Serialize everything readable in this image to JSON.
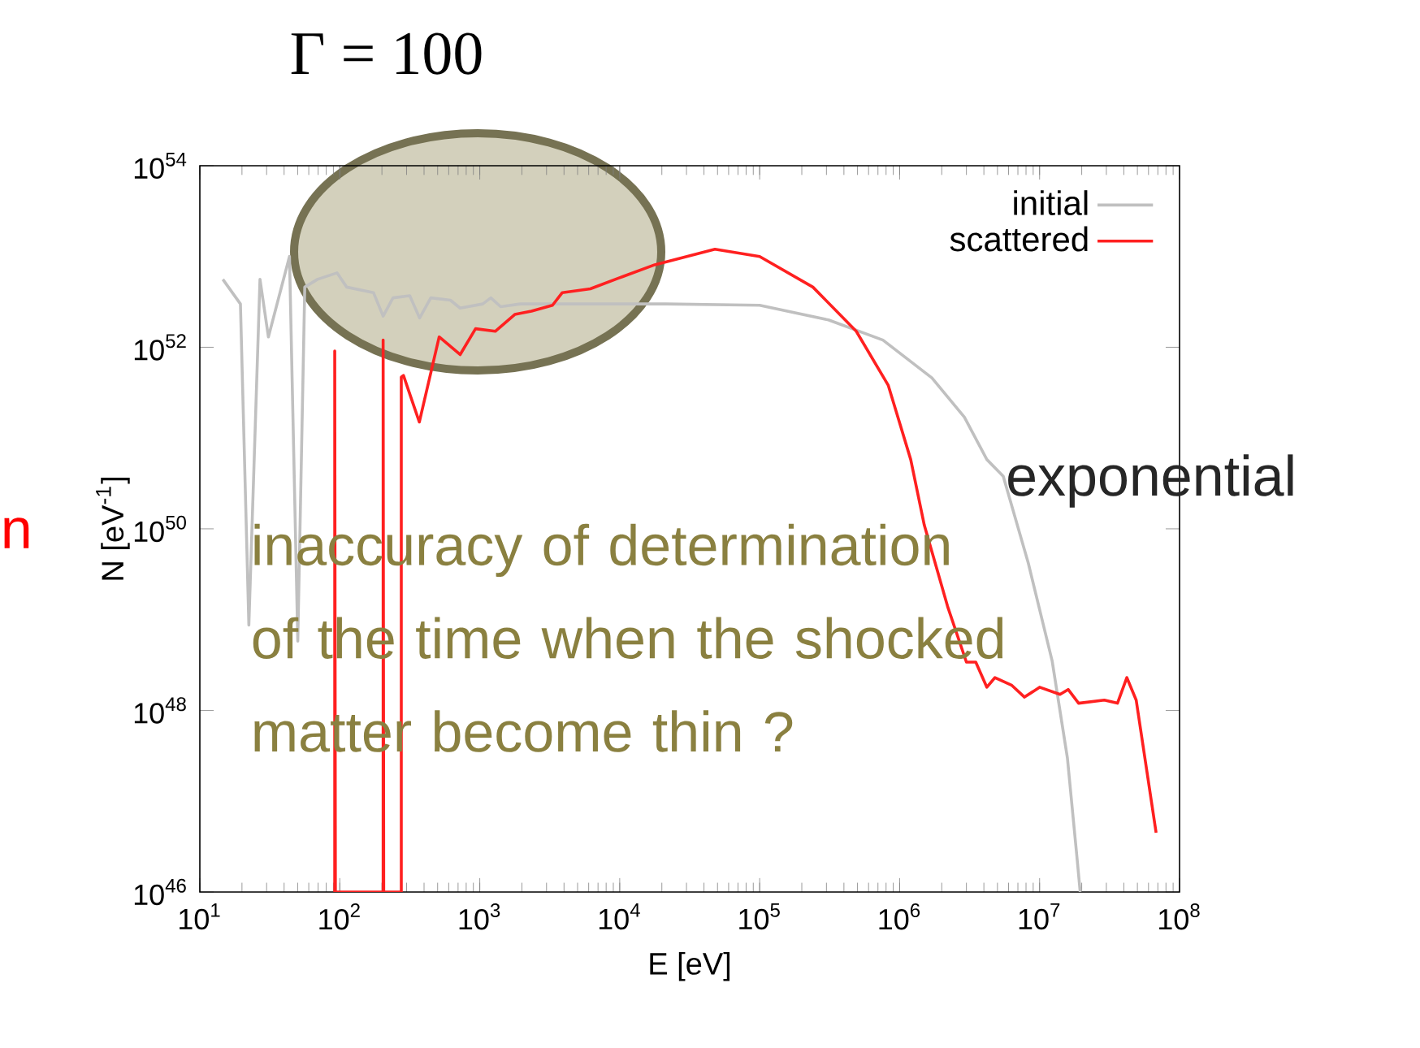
{
  "chart_data": {
    "type": "line",
    "title": "Γ = 100",
    "xlabel": "E [eV]",
    "ylabel": "N [eV$^{-1}$]",
    "log": "xy",
    "legend": "top right",
    "marker": "none",
    "xlim": [
      10,
      100000000.0
    ],
    "ylim": [
      1e+46,
      1e+54
    ],
    "xticks": [
      {
        "value": 10,
        "label": "10$^{1}$"
      },
      {
        "value": 100,
        "label": "10$^{2}$"
      },
      {
        "value": 1000,
        "label": "10$^{3}$"
      },
      {
        "value": 10000,
        "label": "10$^{4}$"
      },
      {
        "value": 100000,
        "label": "10$^{5}$"
      },
      {
        "value": 1000000,
        "label": "10$^{6}$"
      },
      {
        "value": 10000000,
        "label": "10$^{7}$"
      },
      {
        "value": 100000000,
        "label": "10$^{8}$"
      }
    ],
    "yticks": [
      {
        "value": 1e+46,
        "label": "10$^{46}$"
      },
      {
        "value": 1e+48,
        "label": "10$^{48}$"
      },
      {
        "value": 1e+50,
        "label": "10$^{50}$"
      },
      {
        "value": 1e+52,
        "label": "10$^{52}$"
      },
      {
        "value": 1e+54,
        "label": "10$^{54}$"
      }
    ],
    "series": [
      {
        "name": "initial",
        "color": "#c0c0c0",
        "x": [
          14.6,
          19.5,
          22.4,
          26.9,
          30.9,
          43.7,
          50.1,
          56.2,
          69.2,
          95.5,
          112,
          174,
          204,
          240,
          316,
          372,
          447,
          617,
          724,
          1050,
          1200,
          1410,
          1950,
          2750,
          21400,
          100000,
          310000,
          760000,
          1700000,
          2900000,
          4200000,
          5500000,
          8300000,
          12300000,
          15800000,
          18600000,
          19500000
        ],
        "values": [
          5.6e+52,
          3e+52,
          8.7e+48,
          5.6e+52,
          1.3e+52,
          1e+53,
          5.8e+48,
          4.6e+52,
          5.6e+52,
          6.6e+52,
          4.6e+52,
          4e+52,
          2.2e+52,
          3.5e+52,
          3.7e+52,
          2.1e+52,
          3.5e+52,
          3.3e+52,
          2.7e+52,
          3e+52,
          3.5e+52,
          2.8e+52,
          3e+52,
          3e+52,
          3e+52,
          2.9e+52,
          2e+52,
          1.2e+52,
          4.6e+51,
          1.7e+51,
          5.8e+50,
          3.8e+50,
          4.2e+49,
          3.5e+48,
          3e+47,
          2.2e+46,
          1e+46
        ]
      },
      {
        "name": "scattered",
        "color": "#ff2020",
        "x": [
          92,
          92,
          93,
          204,
          204,
          206,
          275,
          275,
          285,
          370,
          513,
          724,
          933,
          1290,
          1780,
          2340,
          3310,
          3890,
          6170,
          10500,
          17800,
          47900,
          100000,
          240000,
          490000,
          830000,
          1200000,
          1500000,
          2200000,
          3000000,
          3500000,
          4200000,
          4800000,
          6300000,
          7800000,
          10000000,
          14000000,
          16000000,
          19000000,
          29000000,
          36000000,
          42000000,
          49000000,
          68000000
        ],
        "values": [
          1e+46,
          9.1e+51,
          1e+46,
          1e+46,
          1.2e+52,
          1e+46,
          1e+46,
          4.7e+51,
          4.9e+51,
          1.5e+51,
          1.3e+52,
          8.3e+51,
          1.6e+52,
          1.5e+52,
          2.3e+52,
          2.5e+52,
          2.9e+52,
          4e+52,
          4.4e+52,
          6e+52,
          8.1e+52,
          1.2e+53,
          1e+53,
          4.6e+52,
          1.5e+52,
          3.8e+51,
          5.8e+50,
          1.1e+50,
          1.4e+49,
          3.4e+48,
          3.4e+48,
          1.8e+48,
          2.3e+48,
          1.9e+48,
          1.4e+48,
          1.8e+48,
          1.5e+48,
          1.7e+48,
          1.2e+48,
          1.3e+48,
          1.2e+48,
          2.3e+48,
          1.3e+48,
          4.5e+46
        ]
      }
    ],
    "annotations": [
      "exponential",
      "inaccuracy of determination of the time when  the shocked matter become thin ?",
      "n"
    ]
  }
}
